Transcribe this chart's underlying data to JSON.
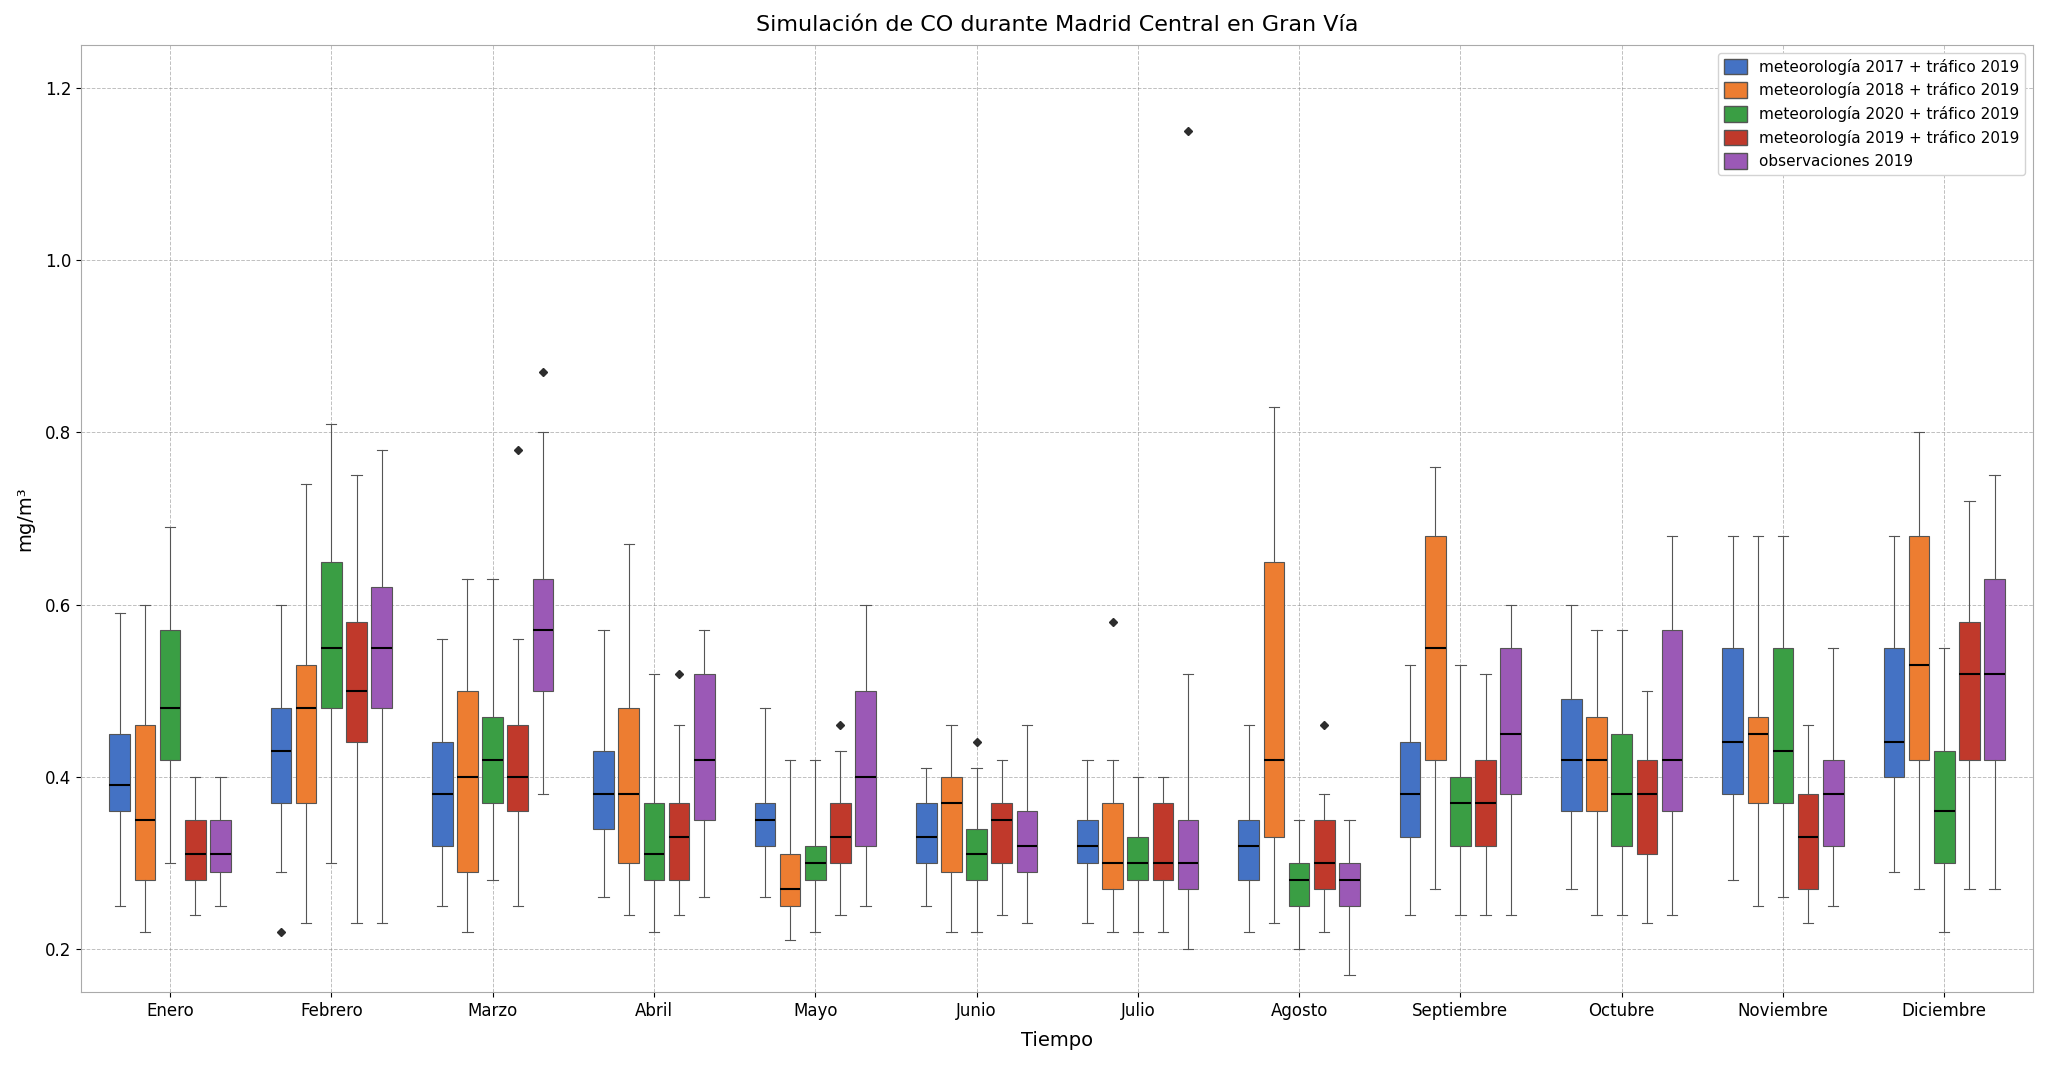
{
  "title": "Simulación de CO durante Madrid Central en Gran Vía",
  "xlabel": "Tiempo",
  "ylabel": "mg/m³",
  "months": [
    "Enero",
    "Febrero",
    "Marzo",
    "Abril",
    "Mayo",
    "Junio",
    "Julio",
    "Agosto",
    "Septiembre",
    "Octubre",
    "Noviembre",
    "Diciembre"
  ],
  "series_labels": [
    "meteorología 2017 + tráfico 2019",
    "meteorología 2018 + tráfico 2019",
    "meteorología 2020 + tráfico 2019",
    "meteorología 2019 + tráfico 2019",
    "observaciones 2019"
  ],
  "colors": [
    "#4472C4",
    "#ED7D31",
    "#3A9E44",
    "#C0392B",
    "#9B59B6"
  ],
  "ylim": [
    0.15,
    1.25
  ],
  "yticks": [
    0.2,
    0.4,
    0.6,
    0.8,
    1.0,
    1.2
  ],
  "box_data": {
    "met2017": {
      "Enero": {
        "whislo": 0.25,
        "q1": 0.36,
        "med": 0.39,
        "q3": 0.45,
        "whishi": 0.59,
        "fliers": []
      },
      "Febrero": {
        "whislo": 0.29,
        "q1": 0.37,
        "med": 0.43,
        "q3": 0.48,
        "whishi": 0.6,
        "fliers": [
          0.22
        ]
      },
      "Marzo": {
        "whislo": 0.25,
        "q1": 0.32,
        "med": 0.38,
        "q3": 0.44,
        "whishi": 0.56,
        "fliers": []
      },
      "Abril": {
        "whislo": 0.26,
        "q1": 0.34,
        "med": 0.38,
        "q3": 0.43,
        "whishi": 0.57,
        "fliers": []
      },
      "Mayo": {
        "whislo": 0.26,
        "q1": 0.32,
        "med": 0.35,
        "q3": 0.37,
        "whishi": 0.48,
        "fliers": []
      },
      "Junio": {
        "whislo": 0.25,
        "q1": 0.3,
        "med": 0.33,
        "q3": 0.37,
        "whishi": 0.41,
        "fliers": []
      },
      "Julio": {
        "whislo": 0.23,
        "q1": 0.3,
        "med": 0.32,
        "q3": 0.35,
        "whishi": 0.42,
        "fliers": []
      },
      "Agosto": {
        "whislo": 0.22,
        "q1": 0.28,
        "med": 0.32,
        "q3": 0.35,
        "whishi": 0.46,
        "fliers": []
      },
      "Septiembre": {
        "whislo": 0.24,
        "q1": 0.33,
        "med": 0.38,
        "q3": 0.44,
        "whishi": 0.53,
        "fliers": []
      },
      "Octubre": {
        "whislo": 0.27,
        "q1": 0.36,
        "med": 0.42,
        "q3": 0.49,
        "whishi": 0.6,
        "fliers": []
      },
      "Noviembre": {
        "whislo": 0.28,
        "q1": 0.38,
        "med": 0.44,
        "q3": 0.55,
        "whishi": 0.68,
        "fliers": []
      },
      "Diciembre": {
        "whislo": 0.29,
        "q1": 0.4,
        "med": 0.44,
        "q3": 0.55,
        "whishi": 0.68,
        "fliers": []
      }
    },
    "met2018": {
      "Enero": {
        "whislo": 0.22,
        "q1": 0.28,
        "med": 0.35,
        "q3": 0.46,
        "whishi": 0.6,
        "fliers": []
      },
      "Febrero": {
        "whislo": 0.23,
        "q1": 0.37,
        "med": 0.48,
        "q3": 0.53,
        "whishi": 0.74,
        "fliers": []
      },
      "Marzo": {
        "whislo": 0.22,
        "q1": 0.29,
        "med": 0.4,
        "q3": 0.5,
        "whishi": 0.63,
        "fliers": []
      },
      "Abril": {
        "whislo": 0.24,
        "q1": 0.3,
        "med": 0.38,
        "q3": 0.48,
        "whishi": 0.67,
        "fliers": []
      },
      "Mayo": {
        "whislo": 0.21,
        "q1": 0.25,
        "med": 0.27,
        "q3": 0.31,
        "whishi": 0.42,
        "fliers": []
      },
      "Junio": {
        "whislo": 0.22,
        "q1": 0.29,
        "med": 0.37,
        "q3": 0.4,
        "whishi": 0.46,
        "fliers": []
      },
      "Julio": {
        "whislo": 0.22,
        "q1": 0.27,
        "med": 0.3,
        "q3": 0.37,
        "whishi": 0.42,
        "fliers": [
          0.58
        ]
      },
      "Agosto": {
        "whislo": 0.23,
        "q1": 0.33,
        "med": 0.42,
        "q3": 0.65,
        "whishi": 0.83,
        "fliers": []
      },
      "Septiembre": {
        "whislo": 0.27,
        "q1": 0.42,
        "med": 0.55,
        "q3": 0.68,
        "whishi": 0.76,
        "fliers": []
      },
      "Octubre": {
        "whislo": 0.24,
        "q1": 0.36,
        "med": 0.42,
        "q3": 0.47,
        "whishi": 0.57,
        "fliers": []
      },
      "Noviembre": {
        "whislo": 0.25,
        "q1": 0.37,
        "med": 0.45,
        "q3": 0.47,
        "whishi": 0.68,
        "fliers": []
      },
      "Diciembre": {
        "whislo": 0.27,
        "q1": 0.42,
        "med": 0.53,
        "q3": 0.68,
        "whishi": 0.8,
        "fliers": []
      }
    },
    "met2020": {
      "Enero": {
        "whislo": 0.3,
        "q1": 0.42,
        "med": 0.48,
        "q3": 0.57,
        "whishi": 0.69,
        "fliers": []
      },
      "Febrero": {
        "whislo": 0.3,
        "q1": 0.48,
        "med": 0.55,
        "q3": 0.65,
        "whishi": 0.81,
        "fliers": []
      },
      "Marzo": {
        "whislo": 0.28,
        "q1": 0.37,
        "med": 0.42,
        "q3": 0.47,
        "whishi": 0.63,
        "fliers": []
      },
      "Abril": {
        "whislo": 0.22,
        "q1": 0.28,
        "med": 0.31,
        "q3": 0.37,
        "whishi": 0.52,
        "fliers": []
      },
      "Mayo": {
        "whislo": 0.22,
        "q1": 0.28,
        "med": 0.3,
        "q3": 0.32,
        "whishi": 0.42,
        "fliers": []
      },
      "Junio": {
        "whislo": 0.22,
        "q1": 0.28,
        "med": 0.31,
        "q3": 0.34,
        "whishi": 0.41,
        "fliers": [
          0.44
        ]
      },
      "Julio": {
        "whislo": 0.22,
        "q1": 0.28,
        "med": 0.3,
        "q3": 0.33,
        "whishi": 0.4,
        "fliers": []
      },
      "Agosto": {
        "whislo": 0.2,
        "q1": 0.25,
        "med": 0.28,
        "q3": 0.3,
        "whishi": 0.35,
        "fliers": []
      },
      "Septiembre": {
        "whislo": 0.24,
        "q1": 0.32,
        "med": 0.37,
        "q3": 0.4,
        "whishi": 0.53,
        "fliers": []
      },
      "Octubre": {
        "whislo": 0.24,
        "q1": 0.32,
        "med": 0.38,
        "q3": 0.45,
        "whishi": 0.57,
        "fliers": []
      },
      "Noviembre": {
        "whislo": 0.26,
        "q1": 0.37,
        "med": 0.43,
        "q3": 0.55,
        "whishi": 0.68,
        "fliers": []
      },
      "Diciembre": {
        "whislo": 0.22,
        "q1": 0.3,
        "med": 0.36,
        "q3": 0.43,
        "whishi": 0.55,
        "fliers": []
      }
    },
    "met2019": {
      "Enero": {
        "whislo": 0.24,
        "q1": 0.28,
        "med": 0.31,
        "q3": 0.35,
        "whishi": 0.4,
        "fliers": []
      },
      "Febrero": {
        "whislo": 0.23,
        "q1": 0.44,
        "med": 0.5,
        "q3": 0.58,
        "whishi": 0.75,
        "fliers": []
      },
      "Marzo": {
        "whislo": 0.25,
        "q1": 0.36,
        "med": 0.4,
        "q3": 0.46,
        "whishi": 0.56,
        "fliers": [
          0.78
        ]
      },
      "Abril": {
        "whislo": 0.24,
        "q1": 0.28,
        "med": 0.33,
        "q3": 0.37,
        "whishi": 0.46,
        "fliers": [
          0.52
        ]
      },
      "Mayo": {
        "whislo": 0.24,
        "q1": 0.3,
        "med": 0.33,
        "q3": 0.37,
        "whishi": 0.43,
        "fliers": [
          0.46
        ]
      },
      "Junio": {
        "whislo": 0.24,
        "q1": 0.3,
        "med": 0.35,
        "q3": 0.37,
        "whishi": 0.42,
        "fliers": []
      },
      "Julio": {
        "whislo": 0.22,
        "q1": 0.28,
        "med": 0.3,
        "q3": 0.37,
        "whishi": 0.4,
        "fliers": []
      },
      "Agosto": {
        "whislo": 0.22,
        "q1": 0.27,
        "med": 0.3,
        "q3": 0.35,
        "whishi": 0.38,
        "fliers": [
          0.46
        ]
      },
      "Septiembre": {
        "whislo": 0.24,
        "q1": 0.32,
        "med": 0.37,
        "q3": 0.42,
        "whishi": 0.52,
        "fliers": []
      },
      "Octubre": {
        "whislo": 0.23,
        "q1": 0.31,
        "med": 0.38,
        "q3": 0.42,
        "whishi": 0.5,
        "fliers": []
      },
      "Noviembre": {
        "whislo": 0.23,
        "q1": 0.27,
        "med": 0.33,
        "q3": 0.38,
        "whishi": 0.46,
        "fliers": []
      },
      "Diciembre": {
        "whislo": 0.27,
        "q1": 0.42,
        "med": 0.52,
        "q3": 0.58,
        "whishi": 0.72,
        "fliers": []
      }
    },
    "obs2019": {
      "Enero": {
        "whislo": 0.25,
        "q1": 0.29,
        "med": 0.31,
        "q3": 0.35,
        "whishi": 0.4,
        "fliers": []
      },
      "Febrero": {
        "whislo": 0.23,
        "q1": 0.48,
        "med": 0.55,
        "q3": 0.62,
        "whishi": 0.78,
        "fliers": []
      },
      "Marzo": {
        "whislo": 0.38,
        "q1": 0.5,
        "med": 0.57,
        "q3": 0.63,
        "whishi": 0.8,
        "fliers": [
          0.87
        ]
      },
      "Abril": {
        "whislo": 0.26,
        "q1": 0.35,
        "med": 0.42,
        "q3": 0.52,
        "whishi": 0.57,
        "fliers": []
      },
      "Mayo": {
        "whislo": 0.25,
        "q1": 0.32,
        "med": 0.4,
        "q3": 0.5,
        "whishi": 0.6,
        "fliers": []
      },
      "Junio": {
        "whislo": 0.23,
        "q1": 0.29,
        "med": 0.32,
        "q3": 0.36,
        "whishi": 0.46,
        "fliers": []
      },
      "Julio": {
        "whislo": 0.2,
        "q1": 0.27,
        "med": 0.3,
        "q3": 0.35,
        "whishi": 0.52,
        "fliers": [
          1.15
        ]
      },
      "Agosto": {
        "whislo": 0.17,
        "q1": 0.25,
        "med": 0.28,
        "q3": 0.3,
        "whishi": 0.35,
        "fliers": []
      },
      "Septiembre": {
        "whislo": 0.24,
        "q1": 0.38,
        "med": 0.45,
        "q3": 0.55,
        "whishi": 0.6,
        "fliers": []
      },
      "Octubre": {
        "whislo": 0.24,
        "q1": 0.36,
        "med": 0.42,
        "q3": 0.57,
        "whishi": 0.68,
        "fliers": []
      },
      "Noviembre": {
        "whislo": 0.25,
        "q1": 0.32,
        "med": 0.38,
        "q3": 0.42,
        "whishi": 0.55,
        "fliers": []
      },
      "Diciembre": {
        "whislo": 0.27,
        "q1": 0.42,
        "med": 0.52,
        "q3": 0.63,
        "whishi": 0.75,
        "fliers": []
      }
    }
  }
}
